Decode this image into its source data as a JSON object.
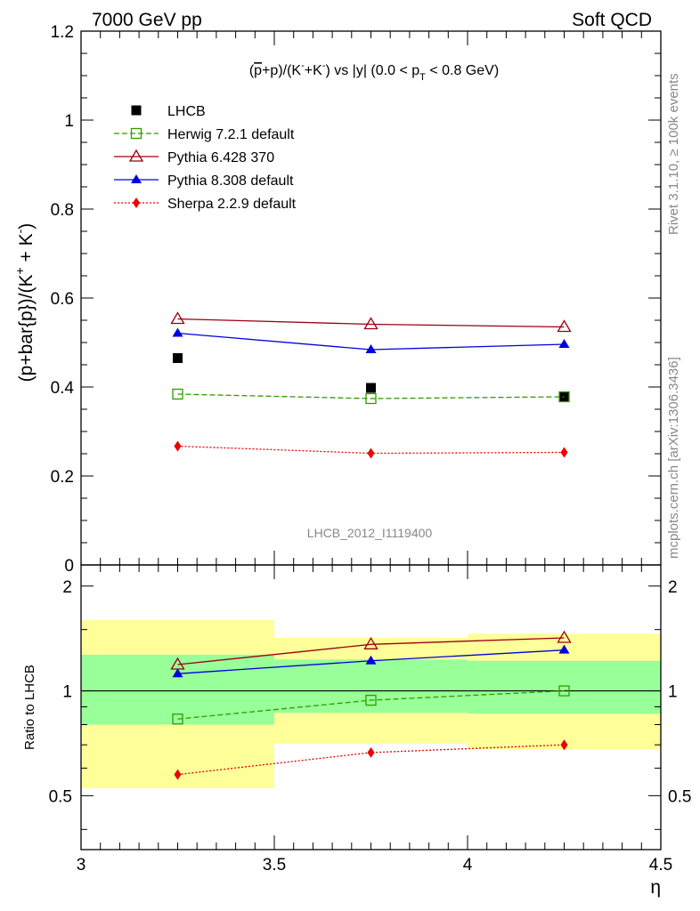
{
  "header": {
    "left": "7000 GeV pp",
    "right": "Soft QCD"
  },
  "side_labels": {
    "rivet": "Rivet 3.1.10, ≥ 100k events",
    "mcplots": "mcplots.cern.ch [arXiv:1306.3436]"
  },
  "watermark": "LHCB_2012_I1119400",
  "chart_data": [
    {
      "type": "line",
      "title": "(p̅+p)/(K⁻+K⁻) vs |y| (0.0 < p_T < 0.8 GeV)",
      "title_parts": {
        "a": "(",
        "pbar": "p",
        "b": "+p)/(K",
        "sup1": "-",
        "c": "+K",
        "sup2": "-",
        "d": ") vs |y| (0.0 < p",
        "sub": "T",
        "e": " < 0.8 GeV)"
      },
      "ylabel": "(p+bar{p})/(K⁺ + K⁻)",
      "ylabel_parts": {
        "a": "(p+bar{p})/(K",
        "sup1": "+",
        "b": " + K",
        "sup2": "-",
        "c": ")"
      },
      "xlim": [
        3,
        4.5
      ],
      "ylim": [
        0,
        1.2
      ],
      "yticks": [
        0,
        0.2,
        0.4,
        0.6,
        0.8,
        1,
        1.2
      ],
      "ytick_labels": [
        "0",
        "0.2",
        "0.4",
        "0.6",
        "0.8",
        "1",
        "1.2"
      ],
      "x": [
        3.25,
        3.75,
        4.25
      ],
      "series": [
        {
          "name": "LHCB",
          "color": "#000000",
          "marker": "square-filled",
          "line": "none",
          "values": [
            0.465,
            0.398,
            0.378
          ]
        },
        {
          "name": "Herwig 7.2.1 default",
          "color": "#339900",
          "marker": "square-open",
          "line": "dashed",
          "values": [
            0.384,
            0.374,
            0.378
          ]
        },
        {
          "name": "Pythia 6.428 370",
          "color": "#990011",
          "marker": "triangle-open",
          "line": "solid",
          "values": [
            0.553,
            0.541,
            0.535
          ]
        },
        {
          "name": "Pythia 8.308 default",
          "color": "#0000dd",
          "marker": "triangle-filled",
          "line": "solid",
          "values": [
            0.521,
            0.484,
            0.496
          ]
        },
        {
          "name": "Sherpa 2.2.9 default",
          "color": "#ee0000",
          "marker": "diamond-filled",
          "line": "dotted",
          "values": [
            0.267,
            0.251,
            0.253
          ]
        }
      ]
    },
    {
      "type": "line",
      "ylabel": "Ratio to LHCB",
      "xlabel": "η",
      "xlim": [
        3,
        4.5
      ],
      "ylim": [
        0.35,
        2.3
      ],
      "yscale": "log",
      "xticks": [
        3,
        3.5,
        4,
        4.5
      ],
      "xtick_labels": [
        "3",
        "3.5",
        "4",
        "4.5"
      ],
      "yticks": [
        0.5,
        1,
        2
      ],
      "ytick_labels": [
        "0.5",
        "1",
        "2"
      ],
      "x": [
        3.25,
        3.75,
        4.25
      ],
      "bands": [
        {
          "x0": 3.0,
          "x1": 3.5,
          "yellow": [
            0.525,
            1.6
          ],
          "green": [
            0.8,
            1.27
          ]
        },
        {
          "x0": 3.5,
          "x1": 4.0,
          "yellow": [
            0.705,
            1.42
          ],
          "green": [
            0.865,
            1.23
          ]
        },
        {
          "x0": 4.0,
          "x1": 4.5,
          "yellow": [
            0.68,
            1.46
          ],
          "green": [
            0.86,
            1.22
          ]
        }
      ],
      "band_colors": {
        "yellow": "#ffff99",
        "green": "#99ff99"
      },
      "series": [
        {
          "name": "Herwig 7.2.1 default",
          "color": "#339900",
          "marker": "square-open",
          "line": "dashed",
          "values": [
            0.83,
            0.94,
            1.0
          ]
        },
        {
          "name": "Pythia 6.428 370",
          "color": "#990011",
          "marker": "triangle-open",
          "line": "solid",
          "values": [
            1.19,
            1.36,
            1.42
          ]
        },
        {
          "name": "Pythia 8.308 default",
          "color": "#0000dd",
          "marker": "triangle-filled",
          "line": "solid",
          "values": [
            1.12,
            1.22,
            1.31
          ]
        },
        {
          "name": "Sherpa 2.2.9 default",
          "color": "#ee0000",
          "marker": "diamond-filled",
          "line": "dotted",
          "values": [
            0.575,
            0.665,
            0.7
          ]
        }
      ]
    }
  ]
}
